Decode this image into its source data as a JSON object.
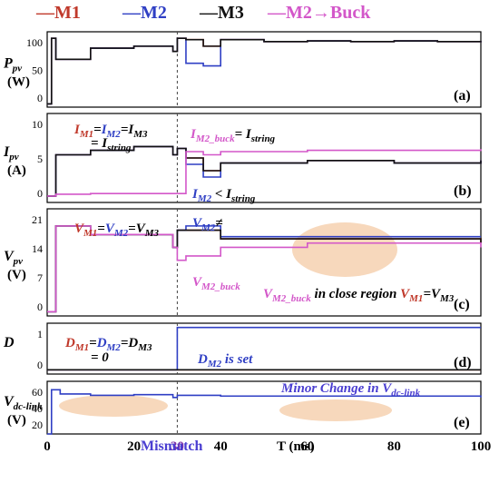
{
  "legend": [
    {
      "label": "M1",
      "color": "#c0392b",
      "dash": "—"
    },
    {
      "label": "M2",
      "color": "#2f3fc4",
      "dash": "—"
    },
    {
      "label": "M3",
      "color": "#111111",
      "dash": "—"
    },
    {
      "label": "M2→Buck",
      "color": "#d357c9",
      "dash": "—"
    }
  ],
  "x_axis": {
    "label": "T (ms)",
    "ticks": [
      "0",
      "20",
      "30",
      "40",
      "60",
      "80",
      "100"
    ],
    "mismatch_label": "Mismatch"
  },
  "panels": [
    {
      "id": "(a)",
      "ylabel_main": "P",
      "ylabel_sub": "pv",
      "ylabel_unit": "(W)",
      "yticks": [
        "100",
        "50",
        "0"
      ],
      "annotations": []
    },
    {
      "id": "(b)",
      "ylabel_main": "I",
      "ylabel_sub": "pv",
      "ylabel_unit": "(A)",
      "yticks": [
        "10",
        "5",
        "0"
      ],
      "annotations": [
        "I",
        "M1",
        "=",
        "I",
        "M2",
        "=",
        "I",
        "M3",
        "= I",
        "string",
        "I",
        "M2_buck",
        "= I",
        "string",
        "I",
        "M2",
        " < I",
        "string"
      ]
    },
    {
      "id": "(c)",
      "ylabel_main": "V",
      "ylabel_sub": "pv",
      "ylabel_unit": "(V)",
      "yticks": [
        "21",
        "14",
        "7",
        "0"
      ],
      "annotations": [
        "V",
        "M1",
        "=",
        "V",
        "M2",
        "=",
        "V",
        "M3",
        "V",
        "M2",
        "≠",
        "V",
        "M2_buck",
        "V",
        "M2_buck",
        " in close region ",
        "V",
        "M1",
        "=",
        "V",
        "M3"
      ]
    },
    {
      "id": "(d)",
      "ylabel_main": "D",
      "yticks": [
        "1",
        "0"
      ],
      "annotations": [
        "D",
        "M1",
        "=",
        "D",
        "M2",
        "=",
        "D",
        "M3",
        "= 0",
        "D",
        "M2",
        " is set"
      ]
    },
    {
      "id": "(e)",
      "ylabel_main": "V",
      "ylabel_sub": "dc-link",
      "ylabel_unit": "(V)",
      "yticks": [
        "60",
        "40",
        "20"
      ],
      "annotations": [
        "Minor Change in V",
        "dc-link"
      ]
    }
  ],
  "chart_data": [
    {
      "type": "line",
      "panel": "(a)",
      "x": [
        0,
        1,
        2,
        10,
        20,
        29,
        30,
        32,
        36,
        40,
        50,
        60,
        70,
        80,
        90,
        100
      ],
      "series": [
        {
          "name": "M1",
          "values": [
            0,
            100,
            68,
            85,
            88,
            80,
            100,
            98,
            88,
            98,
            95,
            96,
            95,
            96,
            95,
            96
          ]
        },
        {
          "name": "M2",
          "values": [
            0,
            100,
            68,
            85,
            88,
            80,
            100,
            62,
            58,
            98,
            95,
            96,
            95,
            96,
            95,
            96
          ]
        },
        {
          "name": "M3",
          "values": [
            0,
            100,
            68,
            85,
            88,
            80,
            100,
            98,
            88,
            98,
            95,
            96,
            95,
            96,
            95,
            96
          ]
        }
      ]
    },
    {
      "type": "line",
      "panel": "(b)",
      "x": [
        0,
        2,
        10,
        20,
        29,
        30,
        32,
        36,
        40,
        60,
        80,
        100
      ],
      "series": [
        {
          "name": "M1",
          "values": [
            0,
            6.5,
            7.2,
            7.8,
            6.5,
            7.5,
            6,
            4,
            5.2,
            5.6,
            5.2,
            5.6
          ]
        },
        {
          "name": "M2",
          "values": [
            0,
            6.5,
            7.2,
            7.8,
            6.5,
            7.5,
            5,
            3,
            5.2,
            5.6,
            5.2,
            5.6
          ]
        },
        {
          "name": "M3",
          "values": [
            0,
            6.5,
            7.2,
            7.8,
            6.5,
            7.5,
            6,
            4,
            5.2,
            5.6,
            5.2,
            5.6
          ]
        },
        {
          "name": "M2→Buck",
          "values": [
            0,
            0.3,
            0.4,
            0.4,
            0.4,
            0.4,
            7,
            6.5,
            7,
            7.2,
            7.2,
            7.4
          ]
        }
      ]
    },
    {
      "type": "line",
      "panel": "(c)",
      "x": [
        0,
        2,
        10,
        20,
        29,
        30,
        32,
        40,
        60,
        80,
        100
      ],
      "series": [
        {
          "name": "M1",
          "values": [
            0,
            20,
            18,
            18,
            15,
            19,
            19,
            17,
            17,
            17,
            16
          ]
        },
        {
          "name": "M2",
          "values": [
            0,
            20,
            18,
            18,
            15,
            19,
            20,
            17.5,
            17.5,
            17.5,
            17.5
          ]
        },
        {
          "name": "M3",
          "values": [
            0,
            20,
            18,
            18,
            15,
            19,
            19,
            17,
            17,
            17,
            16
          ]
        },
        {
          "name": "M2→Buck",
          "values": [
            0,
            20,
            18,
            18,
            15,
            12,
            13,
            15,
            16,
            16,
            15
          ]
        }
      ]
    },
    {
      "type": "line",
      "panel": "(d)",
      "x": [
        0,
        29.9,
        30,
        100
      ],
      "series": [
        {
          "name": "M1",
          "values": [
            0,
            0,
            0,
            0
          ]
        },
        {
          "name": "M2",
          "values": [
            0,
            0,
            1,
            1
          ]
        },
        {
          "name": "M3",
          "values": [
            0,
            0,
            0,
            0
          ]
        }
      ]
    },
    {
      "type": "line",
      "panel": "(e)",
      "x": [
        0,
        1,
        3,
        10,
        20,
        29,
        30,
        40,
        60,
        80,
        100
      ],
      "series": [
        {
          "name": "V_dc-link",
          "values": [
            0,
            63,
            57,
            55,
            56,
            52,
            55,
            54,
            54,
            54,
            52
          ]
        }
      ]
    }
  ]
}
